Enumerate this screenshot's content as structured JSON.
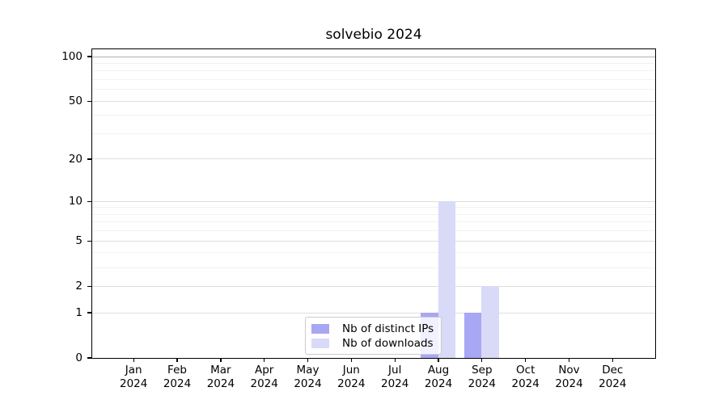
{
  "chart_data": {
    "type": "bar",
    "title": "solvebio 2024",
    "x_year": "2024",
    "categories": [
      "Jan",
      "Feb",
      "Mar",
      "Apr",
      "May",
      "Jun",
      "Jul",
      "Aug",
      "Sep",
      "Oct",
      "Nov",
      "Dec"
    ],
    "series": [
      {
        "name": "Nb of distinct IPs",
        "color": "#a7a7f3",
        "values": [
          0,
          0,
          0,
          0,
          0,
          0,
          0,
          1,
          1,
          0,
          0,
          0
        ]
      },
      {
        "name": "Nb of downloads",
        "color": "#d9d9f8",
        "values": [
          0,
          0,
          0,
          0,
          0,
          0,
          0,
          10,
          2,
          0,
          0,
          0
        ]
      }
    ],
    "y_ticks": [
      0,
      1,
      2,
      5,
      10,
      20,
      50,
      100
    ],
    "y_scale": "log1p",
    "ylim": [
      0,
      112
    ],
    "grid": true,
    "legend_position": "lower-center",
    "axis_color": "#000000",
    "background_color": "#ffffff"
  }
}
